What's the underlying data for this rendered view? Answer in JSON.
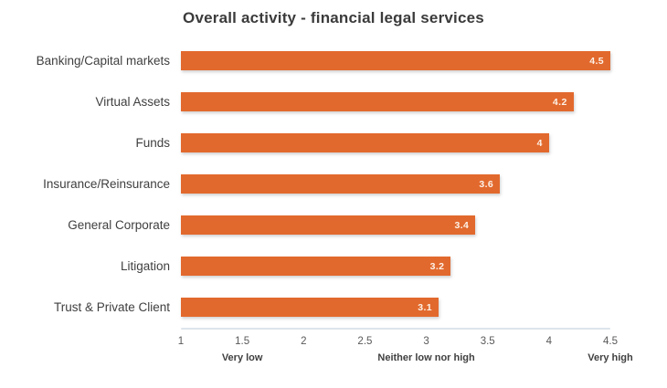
{
  "title": "Overall activity - financial legal services",
  "colors": {
    "bar": "#e2692d",
    "bar_label": "#fdf2e9",
    "title_text": "#3b3b3b",
    "label_text": "#3f3f3f",
    "tick_text": "#595959",
    "axis_line": "#dde4eb"
  },
  "chart_data": {
    "type": "bar",
    "orientation": "horizontal",
    "title": "Overall activity - financial legal services",
    "categories": [
      "Banking/Capital markets",
      "Virtual Assets",
      "Funds",
      "Insurance/Reinsurance",
      "General Corporate",
      "Litigation",
      "Trust & Private Client"
    ],
    "values": [
      4.5,
      4.2,
      4,
      3.6,
      3.4,
      3.2,
      3.1
    ],
    "value_labels": [
      "4.5",
      "4.2",
      "4",
      "3.6",
      "3.4",
      "3.2",
      "3.1"
    ],
    "xlim": [
      1,
      4.5
    ],
    "grid": false,
    "legend": false,
    "bar_color": "#e2692d",
    "x_ticks": [
      {
        "label": "1",
        "value": 1
      },
      {
        "label": "1.5",
        "value": 1.5
      },
      {
        "label": "2",
        "value": 2
      },
      {
        "label": "2.5",
        "value": 2.5
      },
      {
        "label": "3",
        "value": 3
      },
      {
        "label": "3.5",
        "value": 3.5
      },
      {
        "label": "4",
        "value": 4
      },
      {
        "label": "4.5",
        "value": 4.5
      }
    ],
    "axis_annotations": [
      {
        "label": "Very low",
        "value": 1.5
      },
      {
        "label": "Neither low nor high",
        "value": 3
      },
      {
        "label": "Very high",
        "value": 4.5
      }
    ]
  }
}
